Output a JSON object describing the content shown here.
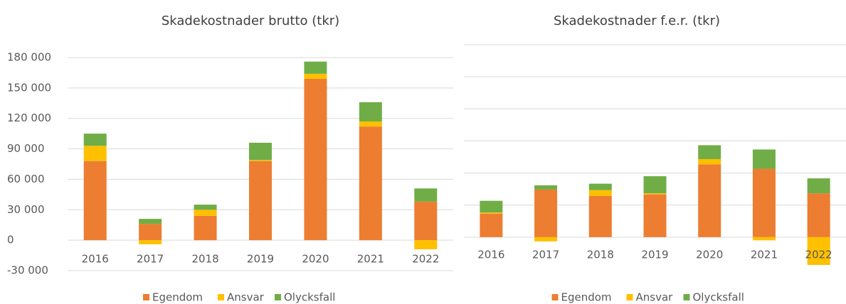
{
  "chart_data": [
    {
      "type": "stacked_bar",
      "title": "Skadekostnader brutto (tkr)",
      "categories": [
        "2016",
        "2017",
        "2018",
        "2019",
        "2020",
        "2021",
        "2022"
      ],
      "series": [
        {
          "name": "Egendom",
          "color": "#ED7D31",
          "values": [
            78000,
            16000,
            24000,
            78000,
            159000,
            112000,
            38000
          ]
        },
        {
          "name": "Ansvar",
          "color": "#FFC000",
          "values": [
            15000,
            -4000,
            6000,
            1000,
            5000,
            5000,
            -9000
          ]
        },
        {
          "name": "Olycksfall",
          "color": "#70AD47",
          "values": [
            12000,
            5000,
            5000,
            17000,
            12000,
            19000,
            13000
          ]
        }
      ],
      "ylim": [
        -30000,
        180000
      ],
      "yticks": [
        {
          "value": -30000,
          "label": "-30 000"
        },
        0,
        {
          "value": 30000,
          "label": "30 000"
        },
        {
          "value": 60000,
          "label": "60 000"
        },
        {
          "value": 90000,
          "label": "90 000"
        },
        {
          "value": 120000,
          "label": "120 000"
        },
        {
          "value": 150000,
          "label": "150 000"
        },
        {
          "value": 180000,
          "label": "180 000"
        }
      ],
      "tick_labels": true,
      "grid": true,
      "legend": "bottom"
    },
    {
      "type": "stacked_bar",
      "title": "Skadekostnader f.e.r. (tkr)",
      "categories": [
        "2016",
        "2017",
        "2018",
        "2019",
        "2020",
        "2021",
        "2022"
      ],
      "series": [
        {
          "name": "Egendom",
          "color": "#ED7D31",
          "values": [
            22000,
            44500,
            38500,
            40000,
            68000,
            64000,
            41000
          ]
        },
        {
          "name": "Ansvar",
          "color": "#FFC000",
          "values": [
            1000,
            -4000,
            5500,
            1000,
            5000,
            -3000,
            -26000
          ]
        },
        {
          "name": "Olycksfall",
          "color": "#70AD47",
          "values": [
            11000,
            4000,
            6000,
            16000,
            13000,
            18000,
            14000
          ]
        }
      ],
      "ylim": [
        -30000,
        180000
      ],
      "yticks": [
        0,
        30000,
        60000,
        90000,
        120000,
        150000,
        180000
      ],
      "tick_labels": false,
      "grid": true,
      "legend": "bottom"
    }
  ]
}
